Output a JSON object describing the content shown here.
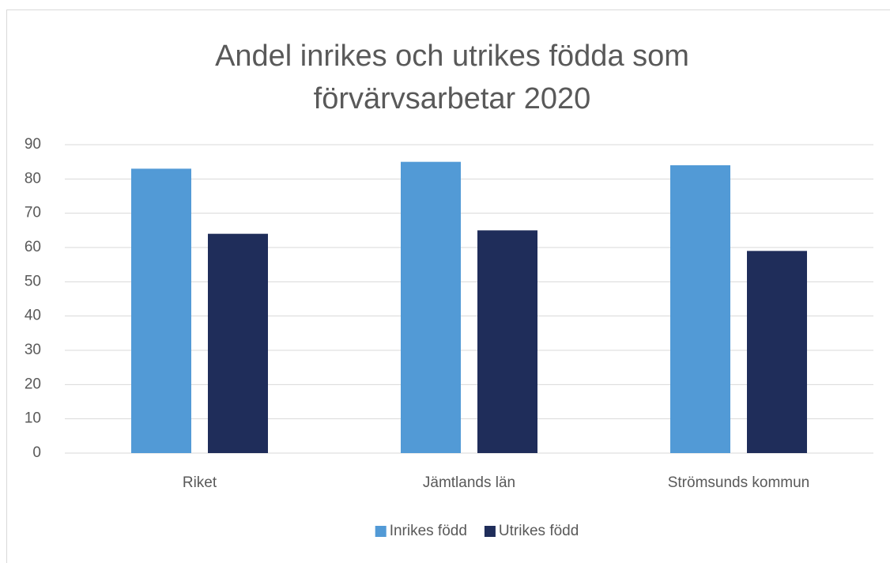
{
  "chart_data": {
    "type": "bar",
    "title": "Andel inrikes och utrikes födda som förvärvsarbetar 2020",
    "categories": [
      "Riket",
      "Jämtlands län",
      "Strömsunds kommun"
    ],
    "series": [
      {
        "name": "Inrikes född",
        "color": "#529ad6",
        "values": [
          83,
          85,
          84
        ]
      },
      {
        "name": "Utrikes född",
        "color": "#1f2d5a",
        "values": [
          64,
          65,
          59
        ]
      }
    ],
    "ylim": [
      0,
      90
    ],
    "yticks": [
      0,
      10,
      20,
      30,
      40,
      50,
      60,
      70,
      80,
      90
    ],
    "grid": true,
    "legend": "bottom"
  }
}
